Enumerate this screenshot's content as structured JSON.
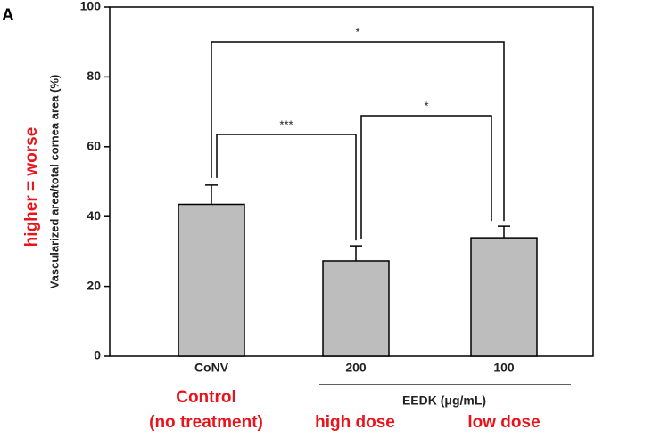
{
  "chart_data": {
    "type": "bar",
    "panel_label": "A",
    "ylabel": "Vascularized area/total cornea area (%)",
    "categories": [
      "CoNV",
      "200",
      "100"
    ],
    "values": [
      43.5,
      27.3,
      33.9
    ],
    "errors": [
      5.5,
      4.3,
      3.3
    ],
    "color": "#bdbdbd",
    "ylim": [
      0,
      100
    ],
    "yticks": [
      0,
      20,
      40,
      60,
      80,
      100
    ],
    "group_label": "EEDK (μg/mL)",
    "significance_labels": [
      "*",
      "***",
      "*"
    ],
    "annotations": [
      "higher = worse",
      "Control",
      "(no treatment)",
      "high dose",
      "low dose"
    ],
    "annotation_color": "#e8141b"
  }
}
